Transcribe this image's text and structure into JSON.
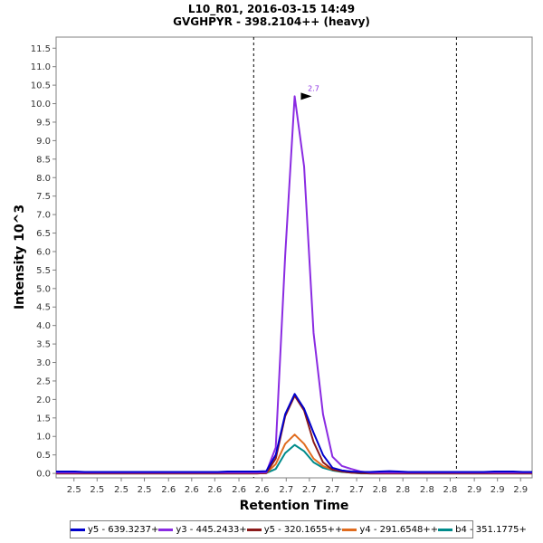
{
  "title_line1": "L10_R01, 2016-03-15 14:49",
  "title_line2": "GVGHPYR - 398.2104++ (heavy)",
  "chart_data": {
    "type": "line",
    "title": "L10_R01, 2016-03-15 14:49",
    "subtitle": "GVGHPYR - 398.2104++ (heavy)",
    "xlabel": "Retention Time",
    "ylabel": "Intensity 10^3",
    "xlim": [
      2.455,
      2.908
    ],
    "ylim": [
      -0.12,
      11.8
    ],
    "grid": false,
    "legend_position": "bottom",
    "x_tick_values": [
      2.472,
      2.494,
      2.517,
      2.539,
      2.562,
      2.584,
      2.606,
      2.629,
      2.651,
      2.674,
      2.696,
      2.718,
      2.741,
      2.763,
      2.785,
      2.808,
      2.83,
      2.853,
      2.875,
      2.897
    ],
    "x_tick_labels": [
      "2.5",
      "2.5",
      "2.5",
      "2.5",
      "2.6",
      "2.6",
      "2.6",
      "2.6",
      "2.6",
      "2.7",
      "2.7",
      "2.7",
      "2.7",
      "2.8",
      "2.8",
      "2.8",
      "2.8",
      "2.9",
      "2.9",
      "2.9"
    ],
    "y_ticks": [
      0.0,
      0.5,
      1.0,
      1.5,
      2.0,
      2.5,
      3.0,
      3.5,
      4.0,
      4.5,
      5.0,
      5.5,
      6.0,
      6.5,
      7.0,
      7.5,
      8.0,
      8.5,
      9.0,
      9.5,
      10.0,
      10.5,
      11.0,
      11.5
    ],
    "y_tick_labels": [
      "0.0",
      "0.5",
      "1.0",
      "1.5",
      "2.0",
      "2.5",
      "3.0",
      "3.5",
      "4.0",
      "4.5",
      "5.0",
      "5.5",
      "6.0",
      "6.5",
      "7.0",
      "7.5",
      "8.0",
      "8.5",
      "9.0",
      "9.5",
      "10.0",
      "10.5",
      "11.0",
      "11.5"
    ],
    "x": [
      2.455,
      2.464,
      2.473,
      2.482,
      2.491,
      2.5,
      2.51,
      2.519,
      2.528,
      2.537,
      2.546,
      2.555,
      2.564,
      2.573,
      2.582,
      2.591,
      2.6,
      2.609,
      2.618,
      2.627,
      2.637,
      2.646,
      2.655,
      2.664,
      2.673,
      2.682,
      2.691,
      2.7,
      2.709,
      2.718,
      2.727,
      2.736,
      2.745,
      2.754,
      2.763,
      2.772,
      2.781,
      2.79,
      2.799,
      2.808,
      2.817,
      2.826,
      2.835,
      2.844,
      2.853,
      2.862,
      2.872,
      2.881,
      2.89,
      2.899,
      2.908
    ],
    "series": [
      {
        "name": "y5 - 639.3237+",
        "color": "#0000cc",
        "values": [
          0.05,
          0.05,
          0.05,
          0.04,
          0.04,
          0.04,
          0.04,
          0.04,
          0.04,
          0.04,
          0.04,
          0.04,
          0.04,
          0.04,
          0.04,
          0.04,
          0.04,
          0.04,
          0.05,
          0.05,
          0.05,
          0.05,
          0.06,
          0.5,
          1.6,
          2.15,
          1.75,
          1.1,
          0.5,
          0.15,
          0.08,
          0.05,
          0.04,
          0.04,
          0.05,
          0.06,
          0.05,
          0.04,
          0.04,
          0.04,
          0.04,
          0.04,
          0.04,
          0.04,
          0.04,
          0.04,
          0.05,
          0.05,
          0.05,
          0.04,
          0.04
        ]
      },
      {
        "name": "y3 - 445.2433+",
        "color": "#8a2be2",
        "values": [
          0.02,
          0.02,
          0.02,
          0.02,
          0.02,
          0.02,
          0.02,
          0.02,
          0.02,
          0.02,
          0.02,
          0.02,
          0.02,
          0.02,
          0.02,
          0.02,
          0.02,
          0.02,
          0.02,
          0.02,
          0.02,
          0.02,
          0.03,
          0.7,
          5.9,
          10.2,
          8.3,
          3.8,
          1.6,
          0.45,
          0.2,
          0.12,
          0.05,
          0.02,
          0.02,
          0.02,
          0.02,
          0.02,
          0.02,
          0.02,
          0.02,
          0.02,
          0.02,
          0.02,
          0.02,
          0.02,
          0.02,
          0.02,
          0.02,
          0.02,
          0.02
        ]
      },
      {
        "name": "y5 - 320.1655++",
        "color": "#8b1a1a",
        "values": [
          0.0,
          0.0,
          0.0,
          0.0,
          0.0,
          0.0,
          0.0,
          0.0,
          0.0,
          0.0,
          0.0,
          0.0,
          0.0,
          0.0,
          0.0,
          0.0,
          0.0,
          0.0,
          0.0,
          0.0,
          0.0,
          0.0,
          0.01,
          0.4,
          1.55,
          2.1,
          1.7,
          0.85,
          0.3,
          0.1,
          0.05,
          0.02,
          0.01,
          0.0,
          0.0,
          0.0,
          0.0,
          0.0,
          0.0,
          0.0,
          0.0,
          0.0,
          0.0,
          0.0,
          0.0,
          0.0,
          0.0,
          0.0,
          0.0,
          0.0,
          0.0
        ]
      },
      {
        "name": "y4 - 291.6548++",
        "color": "#e06c1f",
        "values": [
          0.0,
          0.0,
          0.0,
          0.0,
          0.0,
          0.0,
          0.0,
          0.0,
          0.0,
          0.0,
          0.0,
          0.0,
          0.0,
          0.0,
          0.0,
          0.0,
          0.0,
          0.0,
          0.0,
          0.0,
          0.0,
          0.0,
          0.01,
          0.25,
          0.8,
          1.05,
          0.8,
          0.4,
          0.2,
          0.1,
          0.05,
          0.02,
          0.01,
          0.0,
          0.0,
          0.0,
          0.0,
          0.0,
          0.0,
          0.0,
          0.0,
          0.0,
          0.0,
          0.0,
          0.0,
          0.0,
          0.0,
          0.0,
          0.0,
          0.0,
          0.0
        ]
      },
      {
        "name": "b4 - 351.1775+",
        "color": "#008b8b",
        "values": [
          0.0,
          0.0,
          0.0,
          0.0,
          0.0,
          0.0,
          0.0,
          0.0,
          0.0,
          0.0,
          0.0,
          0.0,
          0.0,
          0.0,
          0.0,
          0.0,
          0.0,
          0.0,
          0.0,
          0.0,
          0.0,
          0.0,
          0.01,
          0.12,
          0.55,
          0.77,
          0.6,
          0.3,
          0.15,
          0.08,
          0.04,
          0.02,
          0.0,
          0.0,
          0.0,
          0.0,
          0.0,
          0.0,
          0.0,
          0.0,
          0.0,
          0.0,
          0.0,
          0.0,
          0.0,
          0.0,
          0.0,
          0.0,
          0.0,
          0.0,
          0.0
        ]
      }
    ],
    "boundaries": [
      2.643,
      2.836
    ],
    "peak_annotation": {
      "label": "2.7",
      "x": 2.7,
      "y": 10.2,
      "color": "#8a2be2"
    }
  },
  "legend": [
    {
      "label": "y5 - 639.3237+",
      "color": "#0000cc"
    },
    {
      "label": "y3 - 445.2433+",
      "color": "#8a2be2"
    },
    {
      "label": "y5 - 320.1655++",
      "color": "#8b1a1a"
    },
    {
      "label": "y4 - 291.6548++",
      "color": "#e06c1f"
    },
    {
      "label": "b4 - 351.1775+",
      "color": "#008b8b"
    }
  ]
}
